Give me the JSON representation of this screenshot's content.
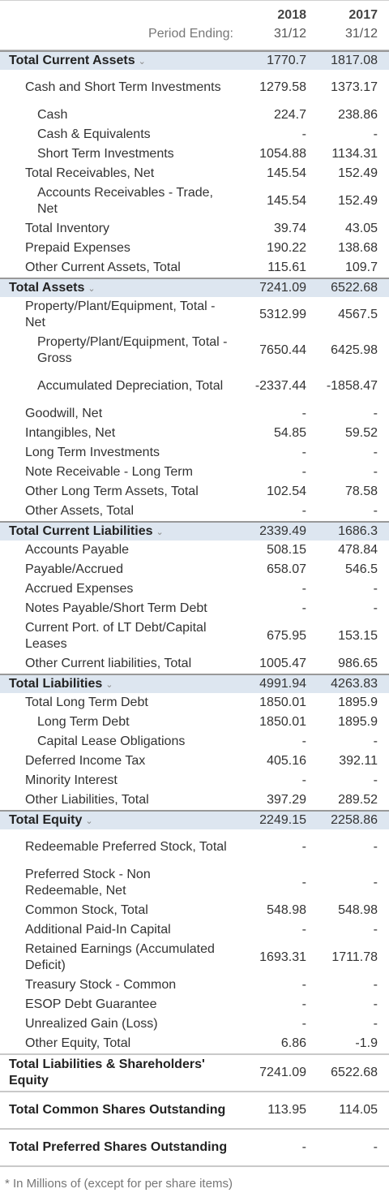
{
  "header": {
    "period_label": "Period Ending:",
    "years": [
      "2018",
      "2017"
    ],
    "dates": [
      "31/12",
      "31/12"
    ]
  },
  "rows": [
    {
      "label": "Total Current Assets",
      "v1": "1770.7",
      "v2": "1817.08",
      "type": "section",
      "h": 24
    },
    {
      "label": "Cash and Short Term Investments",
      "v1": "1279.58",
      "v2": "1373.17",
      "level": 1,
      "h": 44
    },
    {
      "label": "Cash",
      "v1": "224.7",
      "v2": "238.86",
      "level": 2,
      "h": 24
    },
    {
      "label": "Cash & Equivalents",
      "v1": "-",
      "v2": "-",
      "level": 2,
      "h": 24
    },
    {
      "label": "Short Term Investments",
      "v1": "1054.88",
      "v2": "1134.31",
      "level": 2,
      "h": 24
    },
    {
      "label": "Total Receivables, Net",
      "v1": "145.54",
      "v2": "152.49",
      "level": 1,
      "h": 24
    },
    {
      "label": "Accounts Receivables - Trade, Net",
      "v1": "145.54",
      "v2": "152.49",
      "level": 2,
      "h": 44
    },
    {
      "label": "Total Inventory",
      "v1": "39.74",
      "v2": "43.05",
      "level": 1,
      "h": 24
    },
    {
      "label": "Prepaid Expenses",
      "v1": "190.22",
      "v2": "138.68",
      "level": 1,
      "h": 24
    },
    {
      "label": "Other Current Assets, Total",
      "v1": "115.61",
      "v2": "109.7",
      "level": 1,
      "h": 24
    },
    {
      "label": "Total Assets",
      "v1": "7241.09",
      "v2": "6522.68",
      "type": "section",
      "h": 24
    },
    {
      "label": "Property/Plant/Equipment, Total - Net",
      "v1": "5312.99",
      "v2": "4567.5",
      "level": 1,
      "h": 44
    },
    {
      "label": "Property/Plant/Equipment, Total - Gross",
      "v1": "7650.44",
      "v2": "6425.98",
      "level": 2,
      "h": 44
    },
    {
      "label": "Accumulated Depreciation, Total",
      "v1": "-2337.44",
      "v2": "-1858.47",
      "level": 2,
      "h": 44
    },
    {
      "label": "Goodwill, Net",
      "v1": "-",
      "v2": "-",
      "level": 1,
      "h": 24
    },
    {
      "label": "Intangibles, Net",
      "v1": "54.85",
      "v2": "59.52",
      "level": 1,
      "h": 24
    },
    {
      "label": "Long Term Investments",
      "v1": "-",
      "v2": "-",
      "level": 1,
      "h": 24
    },
    {
      "label": "Note Receivable - Long Term",
      "v1": "-",
      "v2": "-",
      "level": 1,
      "h": 24
    },
    {
      "label": "Other Long Term Assets, Total",
      "v1": "102.54",
      "v2": "78.58",
      "level": 1,
      "h": 24
    },
    {
      "label": "Other Assets, Total",
      "v1": "-",
      "v2": "-",
      "level": 1,
      "h": 24
    },
    {
      "label": "Total Current Liabilities",
      "v1": "2339.49",
      "v2": "1686.3",
      "type": "section",
      "h": 24
    },
    {
      "label": "Accounts Payable",
      "v1": "508.15",
      "v2": "478.84",
      "level": 1,
      "h": 24
    },
    {
      "label": "Payable/Accrued",
      "v1": "658.07",
      "v2": "546.5",
      "level": 1,
      "h": 24
    },
    {
      "label": "Accrued Expenses",
      "v1": "-",
      "v2": "-",
      "level": 1,
      "h": 24
    },
    {
      "label": "Notes Payable/Short Term Debt",
      "v1": "-",
      "v2": "-",
      "level": 1,
      "h": 24
    },
    {
      "label": "Current Port. of LT Debt/Capital Leases",
      "v1": "675.95",
      "v2": "153.15",
      "level": 1,
      "h": 44
    },
    {
      "label": "Other Current liabilities, Total",
      "v1": "1005.47",
      "v2": "986.65",
      "level": 1,
      "h": 24
    },
    {
      "label": "Total Liabilities",
      "v1": "4991.94",
      "v2": "4263.83",
      "type": "section",
      "h": 24
    },
    {
      "label": "Total Long Term Debt",
      "v1": "1850.01",
      "v2": "1895.9",
      "level": 1,
      "h": 24
    },
    {
      "label": "Long Term Debt",
      "v1": "1850.01",
      "v2": "1895.9",
      "level": 2,
      "h": 24
    },
    {
      "label": "Capital Lease Obligations",
      "v1": "-",
      "v2": "-",
      "level": 2,
      "h": 24
    },
    {
      "label": "Deferred Income Tax",
      "v1": "405.16",
      "v2": "392.11",
      "level": 1,
      "h": 24
    },
    {
      "label": "Minority Interest",
      "v1": "-",
      "v2": "-",
      "level": 1,
      "h": 24
    },
    {
      "label": "Other Liabilities, Total",
      "v1": "397.29",
      "v2": "289.52",
      "level": 1,
      "h": 24
    },
    {
      "label": "Total Equity",
      "v1": "2249.15",
      "v2": "2258.86",
      "type": "section",
      "h": 24
    },
    {
      "label": "Redeemable Preferred Stock, Total",
      "v1": "-",
      "v2": "-",
      "level": 1,
      "h": 44
    },
    {
      "label": "Preferred Stock - Non Redeemable, Net",
      "v1": "-",
      "v2": "-",
      "level": 1,
      "h": 44
    },
    {
      "label": "Common Stock, Total",
      "v1": "548.98",
      "v2": "548.98",
      "level": 1,
      "h": 24
    },
    {
      "label": "Additional Paid-In Capital",
      "v1": "-",
      "v2": "-",
      "level": 1,
      "h": 24
    },
    {
      "label": "Retained Earnings (Accumulated Deficit)",
      "v1": "1693.31",
      "v2": "1711.78",
      "level": 1,
      "h": 44
    },
    {
      "label": "Treasury Stock - Common",
      "v1": "-",
      "v2": "-",
      "level": 1,
      "h": 24
    },
    {
      "label": "ESOP Debt Guarantee",
      "v1": "-",
      "v2": "-",
      "level": 1,
      "h": 24
    },
    {
      "label": "Unrealized Gain (Loss)",
      "v1": "-",
      "v2": "-",
      "level": 1,
      "h": 24
    },
    {
      "label": "Other Equity, Total",
      "v1": "6.86",
      "v2": "-1.9",
      "level": 1,
      "h": 24
    },
    {
      "label": "Total Liabilities & Shareholders' Equity",
      "v1": "7241.09",
      "v2": "6522.68",
      "type": "total",
      "h": 46
    },
    {
      "label": "Total Common Shares Outstanding",
      "v1": "113.95",
      "v2": "114.05",
      "type": "total",
      "h": 46
    },
    {
      "label": "Total Preferred Shares Outstanding",
      "v1": "-",
      "v2": "-",
      "type": "total",
      "h": 46
    }
  ],
  "footnote": "* In Millions of (except for per share items)"
}
